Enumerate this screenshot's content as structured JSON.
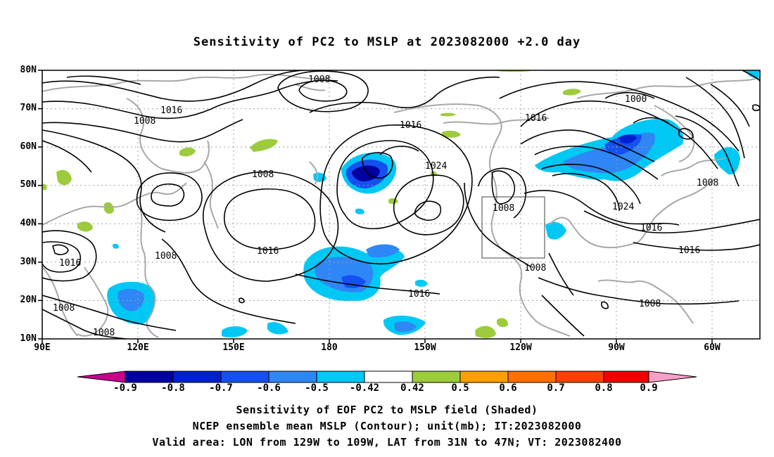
{
  "title": "Sensitivity of PC2 to MSLP at 2023082000 +2.0 day",
  "map": {
    "lat_labels": [
      "80N",
      "70N",
      "60N",
      "50N",
      "40N",
      "30N",
      "20N",
      "10N"
    ],
    "lon_labels": [
      "90E",
      "120E",
      "150E",
      "180",
      "150W",
      "120W",
      "90W",
      "60W"
    ],
    "contour_labels": [
      "1008",
      "1016",
      "1008",
      "1016",
      "1008",
      "1024",
      "1000",
      "1016",
      "1008",
      "1008",
      "1024",
      "1016",
      "1016",
      "1016",
      "1008",
      "1008",
      "1016",
      "1008",
      "1008",
      "1016",
      "1008"
    ],
    "shade_colors": {
      "neg09": "#0000a0",
      "neg08": "#0020d0",
      "neg07": "#1450f0",
      "neg06": "#2f86f5",
      "neg05": "#00c8f5",
      "pos05": "#9ccc3c",
      "pos06": "#ff9a00",
      "pos07": "#ff6a00",
      "pos08": "#ff3a00",
      "pos09": "#f00000"
    }
  },
  "colorbar": {
    "labels": [
      "-0.9",
      "-0.8",
      "-0.7",
      "-0.6",
      "-0.5",
      "-0.42",
      "0.42",
      "0.5",
      "0.6",
      "0.7",
      "0.8",
      "0.9"
    ],
    "colors": [
      "#0000a0",
      "#0020d0",
      "#1450f0",
      "#2f86f5",
      "#00c8f5",
      "#ffffff",
      "#9ccc3c",
      "#ffa000",
      "#ff7000",
      "#ff4000",
      "#f00000"
    ],
    "low_triangle_color": "#c8008c",
    "high_triangle_color": "#f5a0c8"
  },
  "caption": {
    "line1": "Sensitivity of EOF PC2 to MSLP field (Shaded)",
    "line2": "NCEP ensemble mean MSLP (Contour); unit(mb); IT:2023082000",
    "line3": "Valid area: LON from 129W to 109W, LAT from 31N to 47N; VT: 2023082400"
  }
}
